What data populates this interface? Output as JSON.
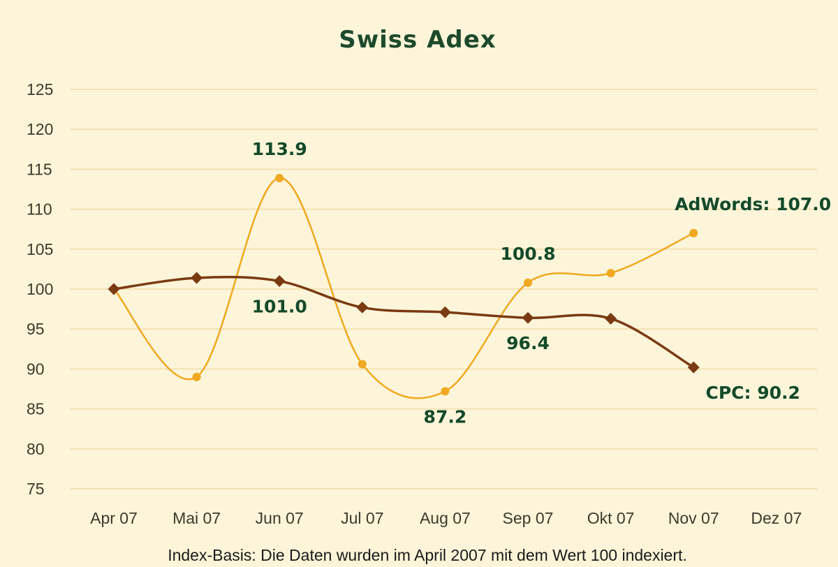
{
  "chart_data": {
    "type": "line",
    "title": "Swiss Adex",
    "xlabel": "",
    "ylabel": "",
    "footnote": "Index-Basis: Die Daten wurden im April 2007 mit dem Wert 100 indexiert.",
    "categories": [
      "Apr 07",
      "Mai 07",
      "Jun 07",
      "Jul 07",
      "Aug 07",
      "Sep 07",
      "Okt 07",
      "Nov 07",
      "Dez 07"
    ],
    "ylim": [
      75,
      125
    ],
    "yticks": [
      75,
      80,
      85,
      90,
      95,
      100,
      105,
      110,
      115,
      120,
      125
    ],
    "grid": true,
    "smooth": true,
    "series": [
      {
        "key": "adwords",
        "color": "#f0a820",
        "values": [
          100,
          89.0,
          113.9,
          90.6,
          87.2,
          100.8,
          102.0,
          107.0,
          null
        ]
      },
      {
        "key": "cpc",
        "color": "#7a3a12",
        "values": [
          100,
          101.4,
          101.0,
          97.7,
          97.1,
          96.4,
          96.3,
          90.2,
          null
        ]
      }
    ],
    "annotations": [
      {
        "series": "adwords",
        "index": 2,
        "text": "113.9",
        "position": "above"
      },
      {
        "series": "adwords",
        "index": 5,
        "text": "100.8",
        "position": "above"
      },
      {
        "series": "adwords",
        "index": 4,
        "text": "87.2",
        "position": "below"
      },
      {
        "series": "adwords",
        "index": 7,
        "text": "AdWords: 107.0",
        "position": "above"
      },
      {
        "series": "cpc",
        "index": 2,
        "text": "101.0",
        "position": "below"
      },
      {
        "series": "cpc",
        "index": 5,
        "text": "96.4",
        "position": "below"
      },
      {
        "series": "cpc",
        "index": 7,
        "text": "CPC: 90.2",
        "position": "below"
      }
    ],
    "colors": {
      "background": "#fdf5d9",
      "grid": "#f2e2b6",
      "title": "#1e4a2c",
      "annotation": "#134a2a"
    }
  }
}
